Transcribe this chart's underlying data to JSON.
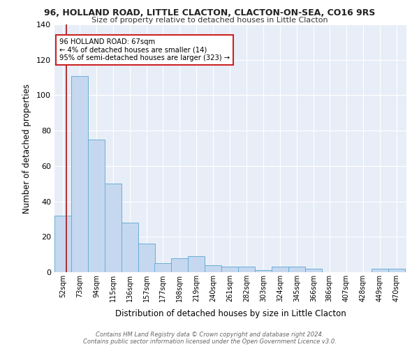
{
  "title": "96, HOLLAND ROAD, LITTLE CLACTON, CLACTON-ON-SEA, CO16 9RS",
  "subtitle": "Size of property relative to detached houses in Little Clacton",
  "xlabel": "Distribution of detached houses by size in Little Clacton",
  "ylabel": "Number of detached properties",
  "categories": [
    "52sqm",
    "73sqm",
    "94sqm",
    "115sqm",
    "136sqm",
    "157sqm",
    "177sqm",
    "198sqm",
    "219sqm",
    "240sqm",
    "261sqm",
    "282sqm",
    "303sqm",
    "324sqm",
    "345sqm",
    "366sqm",
    "386sqm",
    "407sqm",
    "428sqm",
    "449sqm",
    "470sqm"
  ],
  "values": [
    32,
    111,
    75,
    50,
    28,
    16,
    5,
    8,
    9,
    4,
    3,
    3,
    1,
    3,
    3,
    2,
    0,
    0,
    0,
    2,
    2
  ],
  "bar_color": "#c5d8f0",
  "bar_edge_color": "#6aaed6",
  "background_color": "#e8eef8",
  "grid_color": "#ffffff",
  "vline_x": 67,
  "vline_color": "#aa2222",
  "annotation_line1": "96 HOLLAND ROAD: 67sqm",
  "annotation_line2": "← 4% of detached houses are smaller (14)",
  "annotation_line3": "95% of semi-detached houses are larger (323) →",
  "annotation_box_color": "#ffffff",
  "annotation_box_edge": "#cc2222",
  "footnote_line1": "Contains HM Land Registry data © Crown copyright and database right 2024.",
  "footnote_line2": "Contains public sector information licensed under the Open Government Licence v3.0.",
  "ylim": [
    0,
    140
  ],
  "bin_starts": [
    52,
    73,
    94,
    115,
    136,
    157,
    177,
    198,
    219,
    240,
    261,
    282,
    303,
    324,
    345,
    366,
    386,
    407,
    428,
    449,
    470
  ],
  "bin_width": 21
}
